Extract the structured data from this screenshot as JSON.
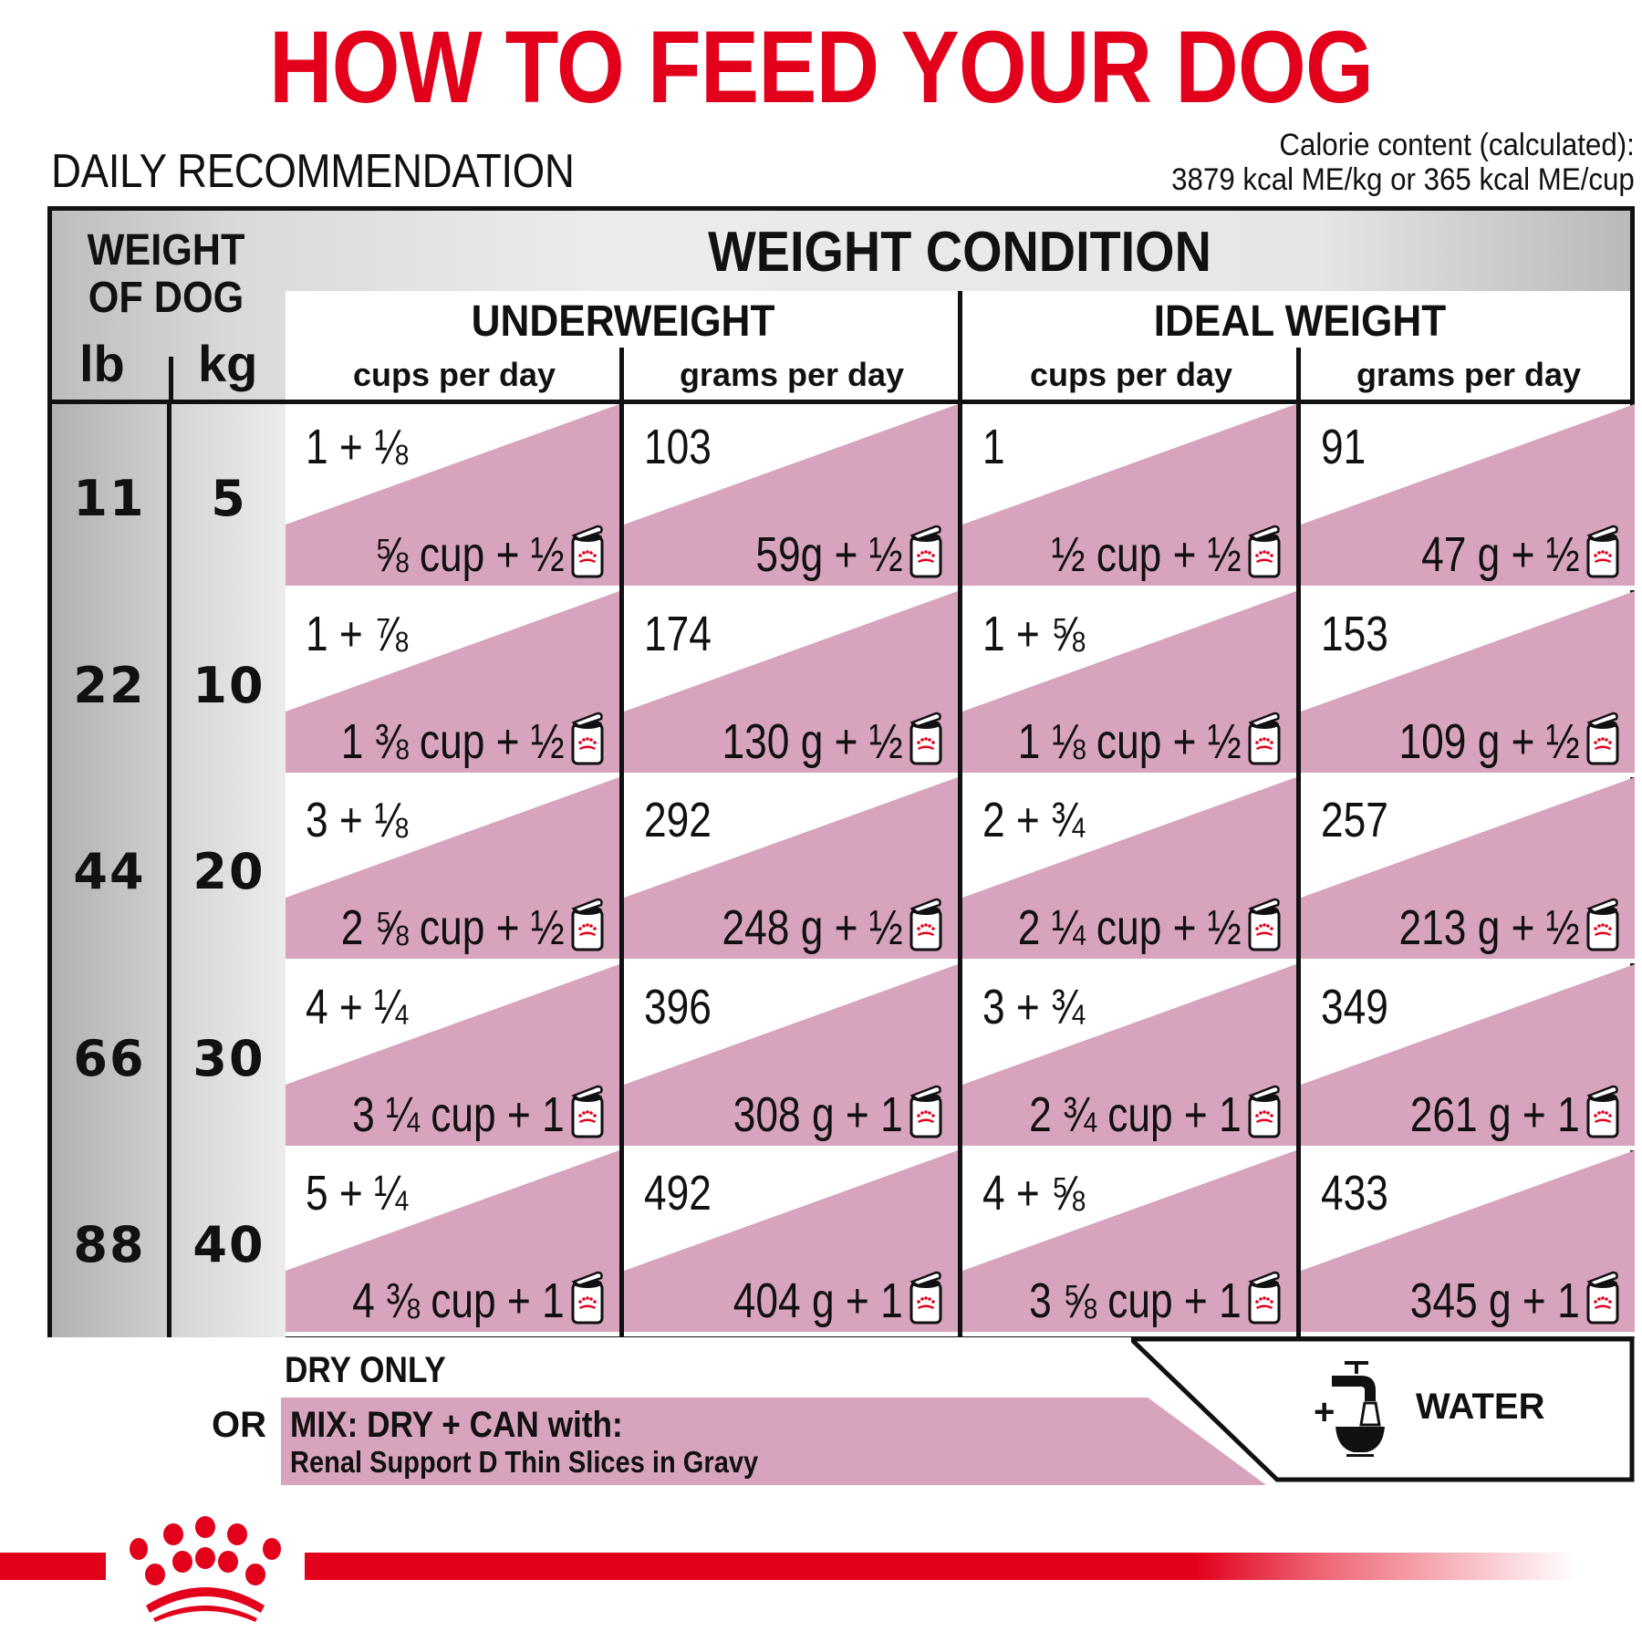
{
  "header": {
    "title": "HOW TO FEED YOUR DOG",
    "subtitle": "DAILY RECOMMENDATION",
    "calorie_line1": "Calorie content (calculated):",
    "calorie_line2": "3879 kcal ME/kg or 365 kcal ME/cup"
  },
  "colors": {
    "brand_red": "#e2001a",
    "pink_fill": "#d7a3bd",
    "border": "#111111"
  },
  "table": {
    "weight_header_line1": "WEIGHT",
    "weight_header_line2": "OF DOG",
    "unit_lb": "lb",
    "unit_kg": "kg",
    "condition_header": "WEIGHT CONDITION",
    "groups": [
      {
        "name": "UNDERWEIGHT",
        "col1": "cups per day",
        "col2": "grams per day"
      },
      {
        "name": "IDEAL WEIGHT",
        "col1": "cups per day",
        "col2": "grams per day"
      }
    ],
    "rows": [
      {
        "lb": "11",
        "kg": "5",
        "cells": [
          {
            "dry": "1 + ⅛",
            "mix": "⅝ cup + ½"
          },
          {
            "dry": "103",
            "mix": "59g + ½"
          },
          {
            "dry": "1",
            "mix": "½ cup + ½"
          },
          {
            "dry": "91",
            "mix": "47 g + ½"
          }
        ]
      },
      {
        "lb": "22",
        "kg": "10",
        "cells": [
          {
            "dry": "1 + ⅞",
            "mix": "1 ⅜ cup + ½"
          },
          {
            "dry": "174",
            "mix": "130 g + ½"
          },
          {
            "dry": "1 + ⅝",
            "mix": "1 ⅛ cup + ½"
          },
          {
            "dry": "153",
            "mix": "109 g + ½"
          }
        ]
      },
      {
        "lb": "44",
        "kg": "20",
        "cells": [
          {
            "dry": "3 + ⅛",
            "mix": "2 ⅝ cup + ½"
          },
          {
            "dry": "292",
            "mix": "248 g + ½"
          },
          {
            "dry": "2 + ¾",
            "mix": "2 ¼ cup + ½"
          },
          {
            "dry": "257",
            "mix": "213 g + ½"
          }
        ]
      },
      {
        "lb": "66",
        "kg": "30",
        "cells": [
          {
            "dry": "4 + ¼",
            "mix": "3 ¼ cup + 1"
          },
          {
            "dry": "396",
            "mix": "308 g + 1"
          },
          {
            "dry": "3 + ¾",
            "mix": "2  ¾ cup + 1"
          },
          {
            "dry": "349",
            "mix": "261 g + 1"
          }
        ]
      },
      {
        "lb": "88",
        "kg": "40",
        "cells": [
          {
            "dry": "5 + ¼",
            "mix": "4 ⅜ cup + 1"
          },
          {
            "dry": "492",
            "mix": "404 g + 1"
          },
          {
            "dry": "4 + ⅝",
            "mix": "3 ⅝ cup + 1"
          },
          {
            "dry": "433",
            "mix": "345 g + 1"
          }
        ]
      }
    ]
  },
  "legend": {
    "dry_only": "DRY ONLY",
    "or": "OR",
    "mix_line1": "MIX: DRY + CAN with:",
    "mix_line2": "Renal Support D Thin Slices in Gravy",
    "water_plus": "+",
    "water_label": "WATER",
    "icons": [
      "can-icon",
      "water-tap-icon",
      "crown-logo-icon"
    ]
  }
}
